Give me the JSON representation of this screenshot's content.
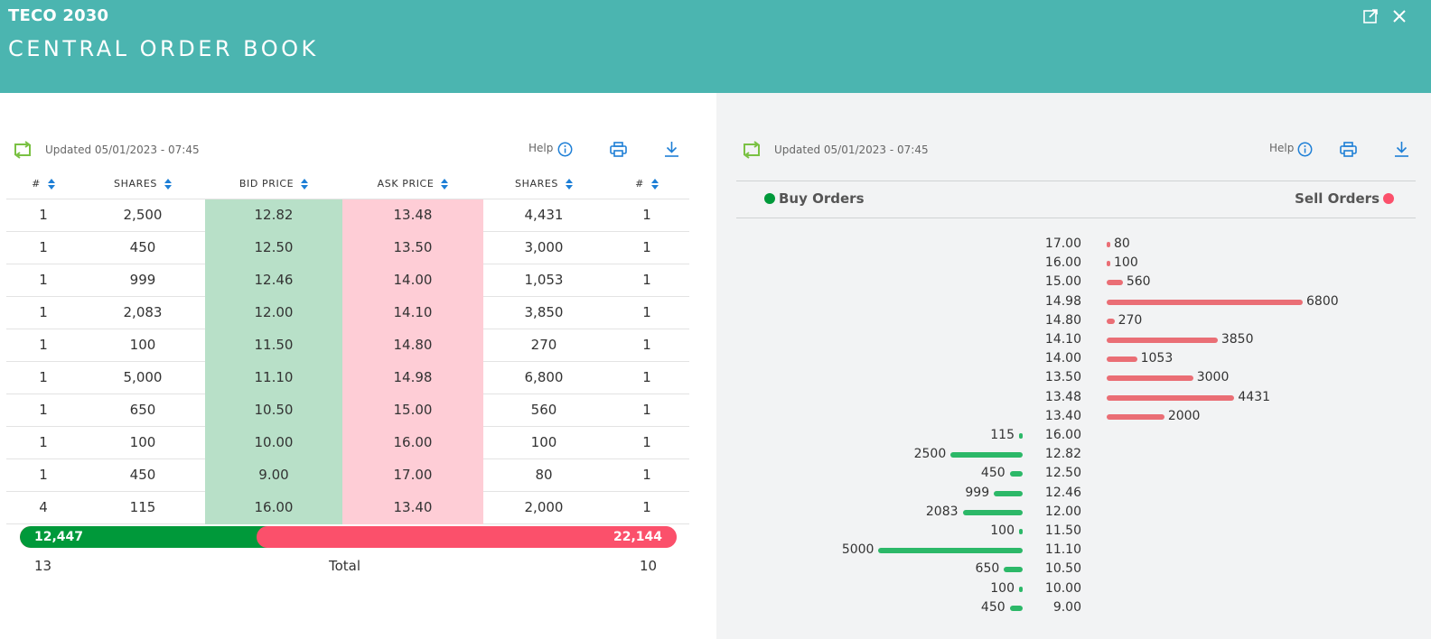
{
  "header": {
    "company": "TECO 2030",
    "title": "CENTRAL ORDER BOOK",
    "icons": [
      "external-link-icon",
      "close-icon"
    ]
  },
  "left": {
    "updated": "Updated 05/01/2023 - 07:45",
    "help_label": "Help",
    "columns": [
      "#",
      "SHARES",
      "BID PRICE",
      "ASK PRICE",
      "SHARES",
      "#"
    ],
    "rows": [
      [
        "1",
        "2,500",
        "12.82",
        "13.48",
        "4,431",
        "1"
      ],
      [
        "1",
        "450",
        "12.50",
        "13.50",
        "3,000",
        "1"
      ],
      [
        "1",
        "999",
        "12.46",
        "14.00",
        "1,053",
        "1"
      ],
      [
        "1",
        "2,083",
        "12.00",
        "14.10",
        "3,850",
        "1"
      ],
      [
        "1",
        "100",
        "11.50",
        "14.80",
        "270",
        "1"
      ],
      [
        "1",
        "5,000",
        "11.10",
        "14.98",
        "6,800",
        "1"
      ],
      [
        "1",
        "650",
        "10.50",
        "15.00",
        "560",
        "1"
      ],
      [
        "1",
        "100",
        "10.00",
        "16.00",
        "100",
        "1"
      ],
      [
        "1",
        "450",
        "9.00",
        "17.00",
        "80",
        "1"
      ],
      [
        "4",
        "115",
        "16.00",
        "13.40",
        "2,000",
        "1"
      ]
    ],
    "total_buy": "12,447",
    "total_sell": "22,144",
    "buy_fraction": 0.36,
    "footer": {
      "buy_count": "13",
      "total_label": "Total",
      "sell_count": "10"
    }
  },
  "right": {
    "updated": "Updated 05/01/2023 - 07:45",
    "help_label": "Help",
    "buy_label": "Buy Orders",
    "sell_label": "Sell Orders"
  },
  "colors": {
    "header_bg": "#4bb5b0",
    "buy": "#00993a",
    "sell": "#fb506b",
    "buy_bar": "#2cb868",
    "sell_bar": "#ea6e75",
    "icon_blue": "#1e7fd6",
    "refresh_green": "#7ac143"
  },
  "chart_data": {
    "type": "bar",
    "sell": [
      {
        "price": "17.00",
        "shares": 80
      },
      {
        "price": "16.00",
        "shares": 100
      },
      {
        "price": "15.00",
        "shares": 560
      },
      {
        "price": "14.98",
        "shares": 6800
      },
      {
        "price": "14.80",
        "shares": 270
      },
      {
        "price": "14.10",
        "shares": 3850
      },
      {
        "price": "14.00",
        "shares": 1053
      },
      {
        "price": "13.50",
        "shares": 3000
      },
      {
        "price": "13.48",
        "shares": 4431
      },
      {
        "price": "13.40",
        "shares": 2000
      }
    ],
    "buy": [
      {
        "price": "16.00",
        "shares": 115
      },
      {
        "price": "12.82",
        "shares": 2500
      },
      {
        "price": "12.50",
        "shares": 450
      },
      {
        "price": "12.46",
        "shares": 999
      },
      {
        "price": "12.00",
        "shares": 2083
      },
      {
        "price": "11.50",
        "shares": 100
      },
      {
        "price": "11.10",
        "shares": 5000
      },
      {
        "price": "10.50",
        "shares": 650
      },
      {
        "price": "10.00",
        "shares": 100
      },
      {
        "price": "9.00",
        "shares": 450
      }
    ]
  }
}
